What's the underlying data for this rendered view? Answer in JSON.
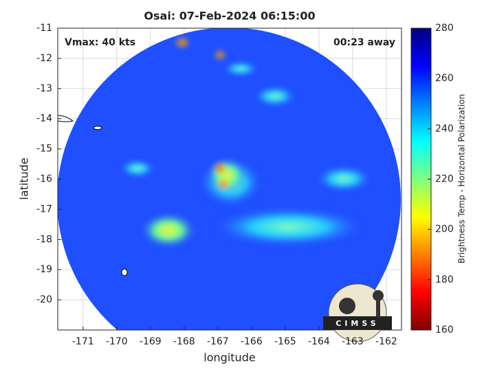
{
  "chart_data": {
    "type": "map",
    "title": "Osai: 07-Feb-2024 06:15:00",
    "annotations": [
      "Vmax: 40 kts",
      "00:23 away"
    ],
    "xlabel": "longitude",
    "ylabel": "latitude",
    "xlim": [
      -171.75,
      -161.55
    ],
    "xticks": [
      -171,
      -170,
      -169,
      -168,
      -167,
      -166,
      -165,
      -164,
      -163,
      -162
    ],
    "ylim": [
      -21,
      -11
    ],
    "yticks": [
      -11,
      -12,
      -13,
      -14,
      -15,
      -16,
      -17,
      -18,
      -19,
      -20
    ],
    "grid": true,
    "colorbar": {
      "label": "Brightness Temp - Horizontal Polarization",
      "lim": [
        160,
        280
      ],
      "ticks": [
        160,
        180,
        200,
        220,
        240,
        260,
        280
      ]
    },
    "logo": "CIMSS"
  }
}
